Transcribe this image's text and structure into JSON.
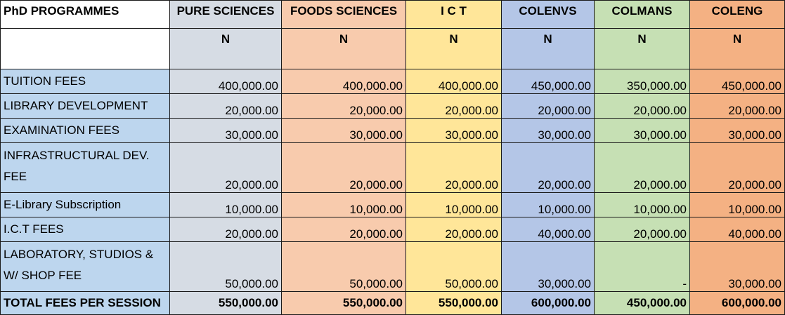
{
  "table": {
    "corner_label": "PhD PROGRAMMES",
    "columns": [
      {
        "label": "PURE SCIENCES",
        "unit": "N",
        "color": "#d6dce4"
      },
      {
        "label": "FOODS SCIENCES",
        "unit": "N",
        "color": "#f8cbad"
      },
      {
        "label": "I C T",
        "unit": "N",
        "color": "#ffe699"
      },
      {
        "label": "COLENVS",
        "unit": "N",
        "color": "#b4c6e7"
      },
      {
        "label": "COLMANS",
        "unit": "N",
        "color": "#c6e0b4"
      },
      {
        "label": "COLENG",
        "unit": "N",
        "color": "#f4b183"
      }
    ],
    "label_color": "#bdd6ee",
    "rows": [
      {
        "label": "TUITION FEES",
        "values": [
          "400,000.00",
          "400,000.00",
          "400,000.00",
          "450,000.00",
          "350,000.00",
          "450,000.00"
        ]
      },
      {
        "label": "LIBRARY DEVELOPMENT",
        "values": [
          "20,000.00",
          "20,000.00",
          "20,000.00",
          "20,000.00",
          "20,000.00",
          "20,000.00"
        ]
      },
      {
        "label": "EXAMINATION FEES",
        "values": [
          "30,000.00",
          "30,000.00",
          "30,000.00",
          "30,000.00",
          "30,000.00",
          "30,000.00"
        ]
      },
      {
        "label": "INFRASTRUCTURAL DEV. FEE",
        "values": [
          "20,000.00",
          "20,000.00",
          "20,000.00",
          "20,000.00",
          "20,000.00",
          "20,000.00"
        ]
      },
      {
        "label": "E-Library Subscription",
        "values": [
          "10,000.00",
          "10,000.00",
          "10,000.00",
          "10,000.00",
          "10,000.00",
          "10,000.00"
        ]
      },
      {
        "label": "I.C.T FEES",
        "values": [
          "20,000.00",
          "20,000.00",
          "20,000.00",
          "40,000.00",
          "20,000.00",
          "40,000.00"
        ]
      },
      {
        "label": "LABORATORY, STUDIOS & W/ SHOP FEE",
        "values": [
          "50,000.00",
          "50,000.00",
          "50,000.00",
          "30,000.00",
          "-",
          "30,000.00"
        ]
      }
    ],
    "total": {
      "label": "TOTAL FEES PER SESSION",
      "values": [
        "550,000.00",
        "550,000.00",
        "550,000.00",
        "600,000.00",
        "450,000.00",
        "600,000.00"
      ]
    }
  }
}
